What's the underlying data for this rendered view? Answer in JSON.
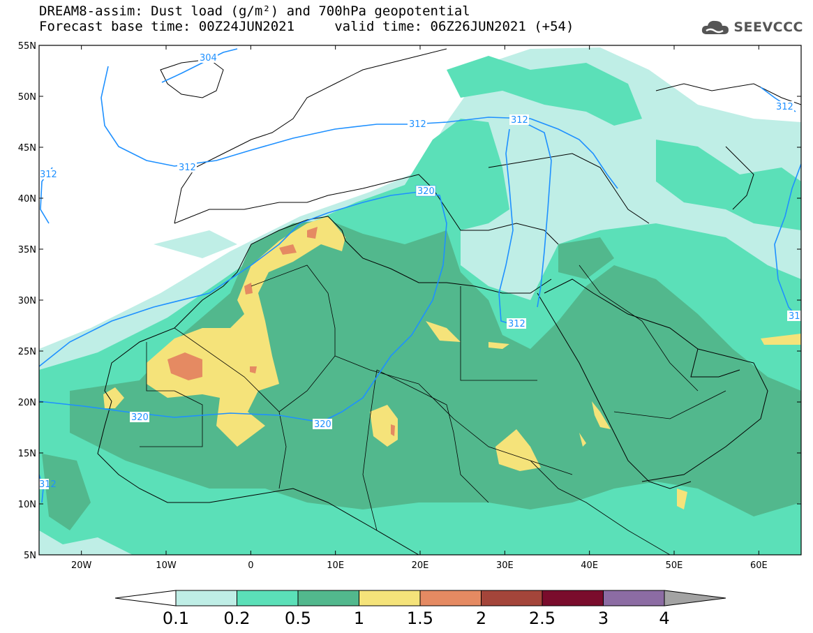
{
  "title": {
    "line1": "DREAM8-assim: Dust load (g/m²) and 700hPa geopotential",
    "line2": "Forecast base time: 00Z24JUN2021     valid time: 06Z26JUN2021 (+54)"
  },
  "logo": {
    "text": "SEEVCCC",
    "icon": "cloud-icon"
  },
  "map": {
    "lat_labels": [
      "55N",
      "50N",
      "45N",
      "40N",
      "35N",
      "30N",
      "25N",
      "20N",
      "15N",
      "10N",
      "5N"
    ],
    "lon_labels": [
      "20W",
      "10W",
      "0",
      "10E",
      "20E",
      "30E",
      "40E",
      "50E",
      "60E"
    ],
    "lat_range": [
      5,
      55
    ],
    "lon_range": [
      -25,
      65
    ],
    "contour_labels": [
      "304",
      "312",
      "312",
      "312",
      "312",
      "312",
      "312",
      "320",
      "320",
      "320",
      "312",
      "31"
    ]
  },
  "colorbar": {
    "labels": [
      "0.1",
      "0.2",
      "0.5",
      "1",
      "1.5",
      "2",
      "2.5",
      "3",
      "4"
    ],
    "colors": [
      "#ffffff",
      "#bfeee6",
      "#5be0b8",
      "#52b88d",
      "#f5e37a",
      "#e58a62",
      "#a4453a",
      "#7a0c2c",
      "#8c6ca3",
      "#a3a3a3"
    ]
  },
  "colors": {
    "c01": "#bfeee6",
    "c02": "#5be0b8",
    "c05": "#52b88d",
    "c1": "#f5e37a",
    "c15": "#e58a62",
    "contour": "#1e90ff"
  }
}
